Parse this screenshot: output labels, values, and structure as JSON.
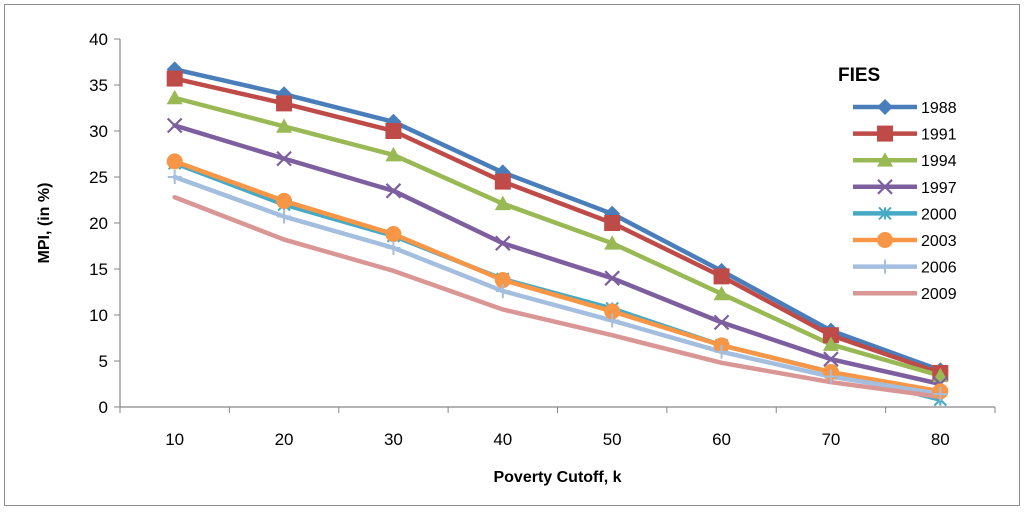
{
  "chart_data": {
    "type": "line",
    "title": "",
    "xlabel": "Poverty Cutoff, k",
    "ylabel": "MPI, (in %)",
    "x": [
      10,
      20,
      30,
      40,
      50,
      60,
      70,
      80
    ],
    "ylim": [
      0,
      40
    ],
    "yticks": [
      0,
      5,
      10,
      15,
      20,
      25,
      30,
      35,
      40
    ],
    "grid": false,
    "legend_title": "FIES",
    "legend_position": "top-right",
    "series": [
      {
        "name": "1988",
        "color": "#4a7ebb",
        "marker": "diamond",
        "values": [
          36.7,
          34.0,
          31.0,
          25.5,
          21.0,
          14.8,
          8.3,
          4.0
        ]
      },
      {
        "name": "1991",
        "color": "#be4b48",
        "marker": "square",
        "values": [
          35.7,
          33.0,
          30.0,
          24.5,
          20.0,
          14.2,
          7.8,
          3.7
        ]
      },
      {
        "name": "1994",
        "color": "#98b954",
        "marker": "triangle",
        "values": [
          33.6,
          30.5,
          27.4,
          22.1,
          17.8,
          12.3,
          6.8,
          3.4
        ]
      },
      {
        "name": "1997",
        "color": "#7d5fa0",
        "marker": "x",
        "values": [
          30.6,
          27.0,
          23.5,
          17.8,
          14.0,
          9.2,
          5.2,
          2.5
        ]
      },
      {
        "name": "2000",
        "color": "#46aac5",
        "marker": "star",
        "values": [
          26.5,
          22.0,
          18.6,
          13.9,
          10.7,
          6.7,
          3.8,
          0.8
        ]
      },
      {
        "name": "2003",
        "color": "#f79646",
        "marker": "circle",
        "values": [
          26.7,
          22.4,
          18.8,
          13.8,
          10.4,
          6.7,
          3.8,
          1.7
        ]
      },
      {
        "name": "2006",
        "color": "#a4bedf",
        "marker": "plus",
        "values": [
          25.0,
          20.7,
          17.3,
          12.6,
          9.4,
          6.0,
          3.3,
          1.4
        ]
      },
      {
        "name": "2009",
        "color": "#da9694",
        "marker": "none",
        "values": [
          22.8,
          18.2,
          14.8,
          10.6,
          7.8,
          4.8,
          2.7,
          1.1
        ]
      }
    ]
  }
}
